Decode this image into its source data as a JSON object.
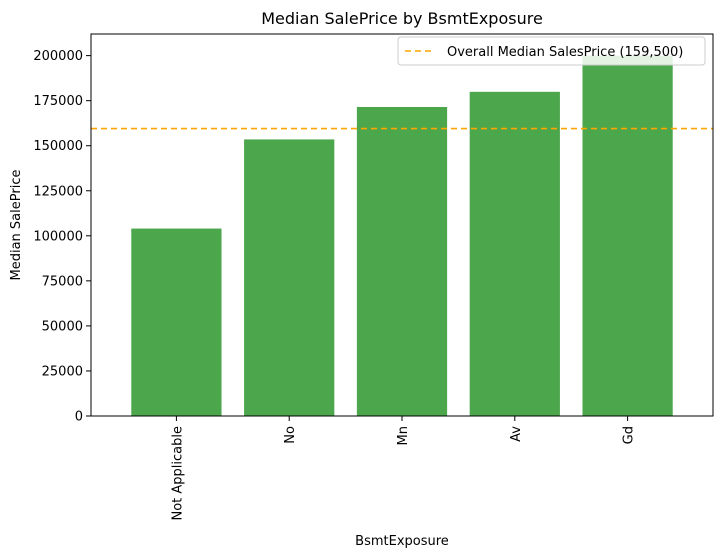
{
  "chart_data": {
    "type": "bar",
    "title": "Median SalePrice by BsmtExposure",
    "xlabel": "BsmtExposure",
    "ylabel": "Median SalePrice",
    "categories": [
      "Not Applicable",
      "No",
      "Mn",
      "Av",
      "Gd"
    ],
    "values": [
      104025,
      153500,
      171500,
      179900,
      200000
    ],
    "ylim": [
      0,
      212000
    ],
    "yticks": [
      0,
      25000,
      50000,
      75000,
      100000,
      125000,
      150000,
      175000,
      200000
    ],
    "reference_line": {
      "value": 159500,
      "label": "Overall Median SalesPrice (159,500)",
      "style": "dashed"
    },
    "legend_position": "top-right",
    "grid": false,
    "colors": {
      "bar": "#4ca64c",
      "reference": "#ffa500"
    }
  }
}
